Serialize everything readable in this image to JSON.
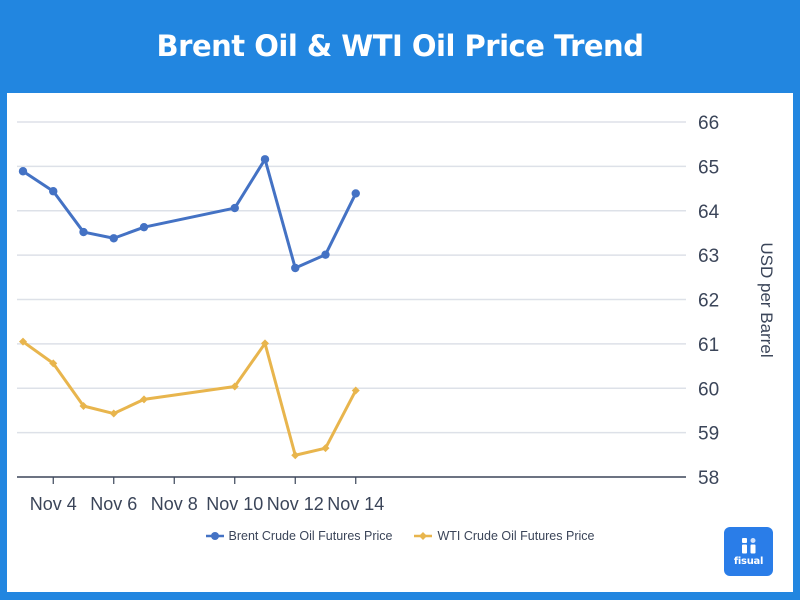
{
  "header": {
    "title": "Brent Oil & WTI Oil Price Trend"
  },
  "colors": {
    "frame": "#2286E0",
    "brent": "#4472C4",
    "wti": "#E8B54D",
    "grid": "#dde1e8",
    "axis": "#3b4559"
  },
  "legend": {
    "items": [
      {
        "label": "Brent Crude Oil Futures Price",
        "color": "#4472C4",
        "marker": "circle"
      },
      {
        "label": "WTI Crude Oil Futures Price",
        "color": "#E8B54D",
        "marker": "diamond"
      }
    ]
  },
  "logo": {
    "text": "fisual"
  },
  "chart_data": {
    "type": "line",
    "title": "Brent Oil & WTI Oil Price Trend",
    "xlabel": "",
    "ylabel": "USD per Barrel",
    "y_axis_position": "right",
    "ylim": [
      58,
      66
    ],
    "yticks": [
      58,
      59,
      60,
      61,
      62,
      63,
      64,
      65,
      66
    ],
    "xtick_labels": [
      "Nov 4",
      "Nov 6",
      "Nov 8",
      "Nov 10",
      "Nov 12",
      "Nov 14"
    ],
    "grid": true,
    "legend_position": "bottom",
    "x": [
      "Nov 3",
      "Nov 4",
      "Nov 5",
      "Nov 6",
      "Nov 7",
      "Nov 10",
      "Nov 11",
      "Nov 12",
      "Nov 13",
      "Nov 14"
    ],
    "x_day": [
      3,
      4,
      5,
      6,
      7,
      10,
      11,
      12,
      13,
      14
    ],
    "series": [
      {
        "name": "Brent Crude Oil Futures Price",
        "color": "#4472C4",
        "marker": "circle",
        "values": [
          64.89,
          64.44,
          63.52,
          63.38,
          63.63,
          64.06,
          65.16,
          62.71,
          63.01,
          64.39
        ]
      },
      {
        "name": "WTI Crude Oil Futures Price",
        "color": "#E8B54D",
        "marker": "diamond",
        "values": [
          61.05,
          60.56,
          59.6,
          59.43,
          59.75,
          60.04,
          61.01,
          58.49,
          58.65,
          59.95
        ]
      }
    ]
  }
}
